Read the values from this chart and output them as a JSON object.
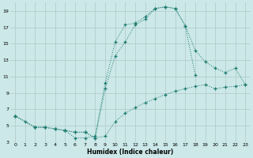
{
  "xlabel": "Humidex (Indice chaleur)",
  "bg_color": "#cce8e8",
  "grid_color": "#b0c8c8",
  "line_color": "#1a7a6e",
  "xlim": [
    -0.5,
    23.5
  ],
  "ylim": [
    3,
    20
  ],
  "xticks": [
    0,
    1,
    2,
    3,
    4,
    5,
    6,
    7,
    8,
    9,
    10,
    11,
    12,
    13,
    14,
    15,
    16,
    17,
    18,
    19,
    20,
    21,
    22,
    23
  ],
  "yticks": [
    3,
    5,
    7,
    9,
    11,
    13,
    15,
    17,
    19
  ],
  "curve1_x": [
    0,
    1,
    2,
    3,
    4,
    5,
    6,
    7,
    8,
    9,
    10,
    11,
    12,
    13,
    14,
    15,
    16,
    17,
    18
  ],
  "curve1_y": [
    6.2,
    5.5,
    4.8,
    4.8,
    4.6,
    4.4,
    3.5,
    3.5,
    3.7,
    10.2,
    15.2,
    17.3,
    17.5,
    18.3,
    19.3,
    19.5,
    19.3,
    17.2,
    11.2
  ],
  "curve2_x": [
    0,
    2,
    3,
    4,
    5,
    6,
    7,
    8,
    9,
    10,
    11,
    12,
    13,
    14,
    15,
    16,
    17,
    18,
    19,
    20,
    21,
    22,
    23
  ],
  "curve2_y": [
    6.2,
    4.8,
    4.8,
    4.6,
    4.4,
    4.2,
    4.2,
    3.5,
    9.5,
    13.5,
    15.2,
    17.3,
    18.0,
    19.3,
    19.5,
    19.3,
    17.2,
    14.2,
    12.8,
    12.0,
    11.5,
    12.0,
    10.0
  ],
  "curve3_x": [
    0,
    2,
    3,
    4,
    5,
    6,
    7,
    8,
    9,
    10,
    11,
    12,
    13,
    14,
    15,
    16,
    17,
    18,
    19,
    20,
    21,
    22,
    23
  ],
  "curve3_y": [
    6.2,
    4.8,
    4.8,
    4.6,
    4.4,
    4.2,
    4.2,
    3.5,
    3.7,
    5.5,
    6.5,
    7.2,
    7.8,
    8.3,
    8.8,
    9.2,
    9.5,
    9.8,
    10.0,
    9.5,
    9.7,
    9.8,
    10.0
  ]
}
